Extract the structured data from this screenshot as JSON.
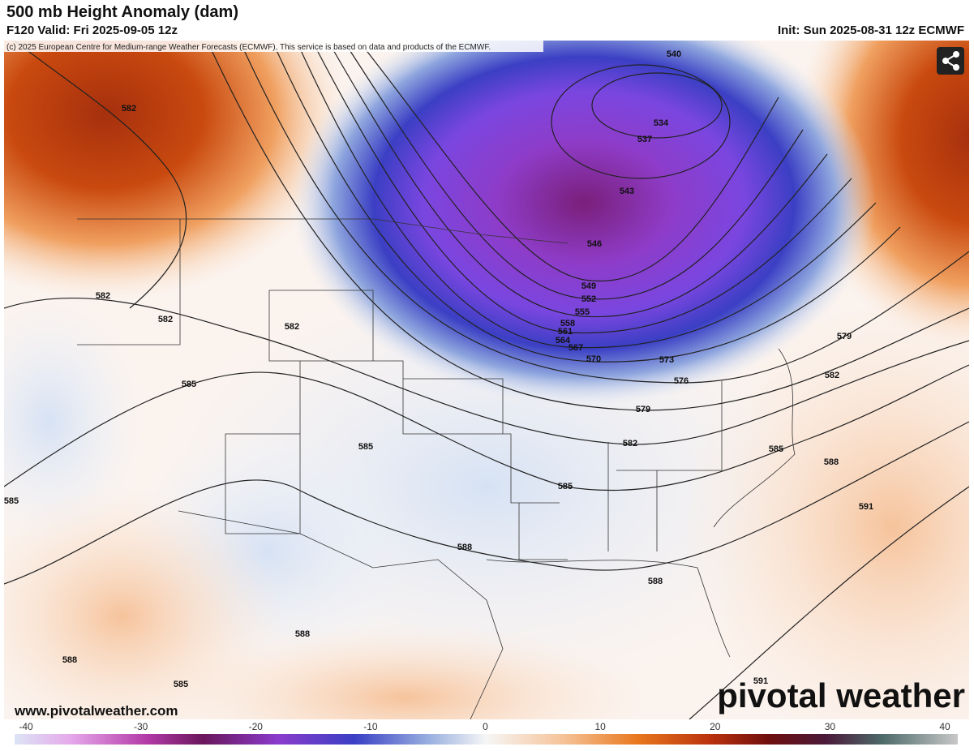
{
  "header": {
    "title": "500 mb Height Anomaly (dam)",
    "valid": "F120 Valid: Fri 2025-09-05 12z",
    "init": "Init: Sun 2025-08-31 12z ECMWF"
  },
  "map": {
    "copyright": "(c) 2025 European Centre for Medium-range Weather Forecasts (ECMWF). This service is based on data and products of the ECMWF.",
    "website": "www.pivotalweather.com",
    "watermark": "pivotal weather",
    "contour_labels": [
      582,
      540,
      534,
      537,
      543,
      546,
      549,
      552,
      555,
      558,
      561,
      564,
      567,
      570,
      573,
      576,
      579,
      582,
      585,
      588,
      591,
      579,
      582,
      582,
      582,
      582,
      585,
      585,
      585,
      588,
      588,
      588,
      588,
      585,
      591,
      585
    ]
  },
  "colorbar": {
    "ticks": [
      -40,
      -30,
      -20,
      -10,
      0,
      10,
      20,
      30,
      40
    ]
  }
}
